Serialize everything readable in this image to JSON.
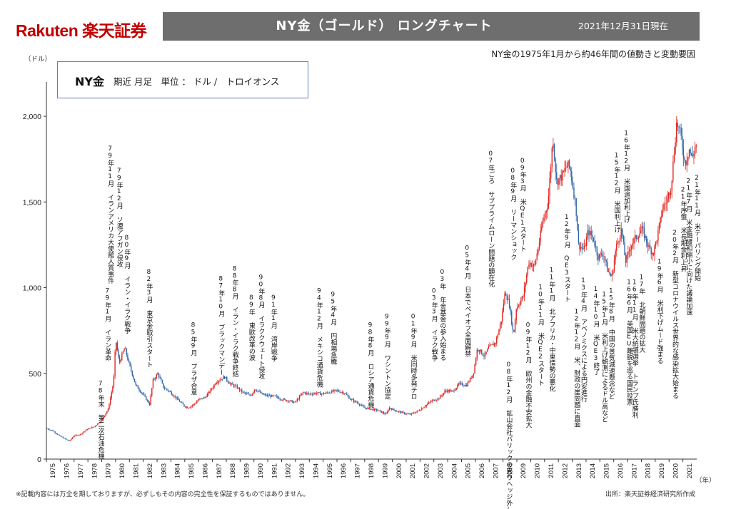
{
  "header": {
    "logo": "Rakuten 楽天証券",
    "title": "NY金（ゴールド） ロングチャート",
    "date": "2021年12月31日現在",
    "subtitle": "NY金の1975年1月から約46年間の値動きと変動要因"
  },
  "legend_box": {
    "main": "NY金",
    "detail": "期近 月足　単位 ： ドル /　トロイオンス"
  },
  "footer": {
    "note": "※記載内容には万全を期しておりますが、必ずしもその内容の完全性を保証するものではありません。",
    "source": "出所：楽天証券経済研究所作成"
  },
  "colors": {
    "up": "#e0201b",
    "down": "#2e63a6",
    "banner": "#6e6e6e",
    "logo": "#bf0000"
  },
  "chart_data": {
    "type": "candlestick",
    "title": "NY金（ゴールド） ロングチャート",
    "ylabel": "（ドル）",
    "xlabel": "（年）",
    "ylim": [
      0,
      2200
    ],
    "yticks": [
      0,
      500,
      1000,
      1500,
      2000
    ],
    "ytick_labels": [
      "0",
      "500",
      "1,000",
      "1,500",
      "2,000"
    ],
    "xlim": [
      1975,
      2022
    ],
    "xticks": [
      1975,
      1976,
      1977,
      1978,
      1979,
      1980,
      1981,
      1982,
      1983,
      1984,
      1985,
      1986,
      1987,
      1988,
      1989,
      1990,
      1991,
      1992,
      1993,
      1994,
      1995,
      1996,
      1997,
      1998,
      1999,
      2000,
      2001,
      2002,
      2003,
      2004,
      2005,
      2006,
      2007,
      2008,
      2009,
      2010,
      2011,
      2012,
      2013,
      2014,
      2015,
      2016,
      2017,
      2018,
      2019,
      2020,
      2021
    ],
    "grid": false,
    "price_path": [
      [
        1975.0,
        180
      ],
      [
        1975.5,
        165
      ],
      [
        1976.0,
        135
      ],
      [
        1976.7,
        105
      ],
      [
        1977.0,
        135
      ],
      [
        1977.5,
        145
      ],
      [
        1978.0,
        175
      ],
      [
        1978.5,
        190
      ],
      [
        1979.0,
        225
      ],
      [
        1979.5,
        290
      ],
      [
        1979.9,
        450
      ],
      [
        1980.05,
        700
      ],
      [
        1980.3,
        560
      ],
      [
        1980.7,
        650
      ],
      [
        1981.0,
        560
      ],
      [
        1981.5,
        430
      ],
      [
        1982.0,
        380
      ],
      [
        1982.5,
        320
      ],
      [
        1982.75,
        460
      ],
      [
        1983.1,
        500
      ],
      [
        1983.5,
        420
      ],
      [
        1984.0,
        390
      ],
      [
        1984.5,
        350
      ],
      [
        1985.0,
        310
      ],
      [
        1985.3,
        300
      ],
      [
        1985.8,
        325
      ],
      [
        1986.0,
        345
      ],
      [
        1986.5,
        360
      ],
      [
        1986.9,
        400
      ],
      [
        1987.3,
        450
      ],
      [
        1987.9,
        480
      ],
      [
        1988.3,
        440
      ],
      [
        1988.8,
        420
      ],
      [
        1989.2,
        390
      ],
      [
        1989.8,
        370
      ],
      [
        1990.1,
        410
      ],
      [
        1990.6,
        380
      ],
      [
        1991.0,
        370
      ],
      [
        1991.6,
        365
      ],
      [
        1992.0,
        350
      ],
      [
        1992.6,
        340
      ],
      [
        1993.0,
        330
      ],
      [
        1993.6,
        390
      ],
      [
        1994.0,
        380
      ],
      [
        1994.6,
        385
      ],
      [
        1995.0,
        380
      ],
      [
        1995.5,
        390
      ],
      [
        1996.0,
        400
      ],
      [
        1996.6,
        385
      ],
      [
        1997.0,
        350
      ],
      [
        1997.6,
        325
      ],
      [
        1998.0,
        300
      ],
      [
        1998.6,
        290
      ],
      [
        1999.0,
        285
      ],
      [
        1999.6,
        260
      ],
      [
        1999.8,
        300
      ],
      [
        2000.2,
        285
      ],
      [
        2000.8,
        270
      ],
      [
        2001.3,
        260
      ],
      [
        2001.9,
        280
      ],
      [
        2002.4,
        310
      ],
      [
        2002.9,
        340
      ],
      [
        2003.4,
        355
      ],
      [
        2003.9,
        400
      ],
      [
        2004.4,
        395
      ],
      [
        2004.9,
        440
      ],
      [
        2005.4,
        430
      ],
      [
        2005.9,
        500
      ],
      [
        2006.2,
        650
      ],
      [
        2006.7,
        600
      ],
      [
        2007.0,
        650
      ],
      [
        2007.5,
        680
      ],
      [
        2007.9,
        800
      ],
      [
        2008.2,
        980
      ],
      [
        2008.5,
        900
      ],
      [
        2008.8,
        720
      ],
      [
        2009.0,
        880
      ],
      [
        2009.5,
        950
      ],
      [
        2009.9,
        1150
      ],
      [
        2010.3,
        1120
      ],
      [
        2010.6,
        1240
      ],
      [
        2010.9,
        1380
      ],
      [
        2011.3,
        1500
      ],
      [
        2011.65,
        1880
      ],
      [
        2011.9,
        1620
      ],
      [
        2012.3,
        1650
      ],
      [
        2012.7,
        1720
      ],
      [
        2012.9,
        1690
      ],
      [
        2013.3,
        1480
      ],
      [
        2013.5,
        1250
      ],
      [
        2013.9,
        1220
      ],
      [
        2014.2,
        1330
      ],
      [
        2014.6,
        1280
      ],
      [
        2014.9,
        1180
      ],
      [
        2015.3,
        1200
      ],
      [
        2015.6,
        1100
      ],
      [
        2015.9,
        1060
      ],
      [
        2016.2,
        1230
      ],
      [
        2016.6,
        1340
      ],
      [
        2016.9,
        1150
      ],
      [
        2017.3,
        1250
      ],
      [
        2017.7,
        1300
      ],
      [
        2018.1,
        1340
      ],
      [
        2018.6,
        1230
      ],
      [
        2018.9,
        1200
      ],
      [
        2019.2,
        1300
      ],
      [
        2019.6,
        1470
      ],
      [
        2019.9,
        1510
      ],
      [
        2020.2,
        1600
      ],
      [
        2020.6,
        1970
      ],
      [
        2020.9,
        1880
      ],
      [
        2021.2,
        1720
      ],
      [
        2021.5,
        1810
      ],
      [
        2021.7,
        1750
      ],
      [
        2021.95,
        1830
      ]
    ],
    "annotations": [
      {
        "x": 1978.9,
        "y": 460,
        "text": "78年末 第二次石油危機"
      },
      {
        "x": 1979.4,
        "y": 1000,
        "text": "79年1月 イラン革命"
      },
      {
        "x": 1979.6,
        "y": 1830,
        "text": "79年11月 イランアメリカ大使館人質事件"
      },
      {
        "x": 1980.25,
        "y": 1700,
        "text": "79年12月 ソ連アフガン侵攻"
      },
      {
        "x": 1980.8,
        "y": 1310,
        "text": "80年9月 イラン・イラク戦争"
      },
      {
        "x": 1982.4,
        "y": 1110,
        "text": "82年3月 東京金取引スタート"
      },
      {
        "x": 1985.6,
        "y": 800,
        "text": "85年9月 プラザ合意"
      },
      {
        "x": 1987.6,
        "y": 1070,
        "text": "87年10月 ブラックマンデー"
      },
      {
        "x": 1988.6,
        "y": 1130,
        "text": "88年8月 イラン・イラク戦争終結"
      },
      {
        "x": 1989.8,
        "y": 960,
        "text": "89年 東欧改革の波"
      },
      {
        "x": 1990.5,
        "y": 1080,
        "text": "90年8月 イラククウェート侵攻"
      },
      {
        "x": 1991.4,
        "y": 960,
        "text": "91年1月 湾岸戦争"
      },
      {
        "x": 1994.7,
        "y": 1000,
        "text": "94年12月 メキシコ通貨危機"
      },
      {
        "x": 1995.7,
        "y": 980,
        "text": "95年4月 円相場急騰"
      },
      {
        "x": 1998.4,
        "y": 800,
        "text": "98年8月 ロシア通貨危機"
      },
      {
        "x": 1999.6,
        "y": 850,
        "text": "99年9月 ワシントン協定"
      },
      {
        "x": 2001.5,
        "y": 850,
        "text": "01年9月 米同時多発テロ"
      },
      {
        "x": 2003.0,
        "y": 1000,
        "text": "03年3月 イラク戦争"
      },
      {
        "x": 2003.6,
        "y": 1110,
        "text": "03年 年金基金の参入始まる"
      },
      {
        "x": 2005.4,
        "y": 1250,
        "text": "05年4月 日本でペイオフ全面解禁"
      },
      {
        "x": 2007.1,
        "y": 1800,
        "text": "07年ごろ サブプライムローン問題の顕在化"
      },
      {
        "x": 2008.4,
        "y": 570,
        "text": "08年12月 鉱山会社バリックの売りヘッジ外し"
      },
      {
        "x": 2008.7,
        "y": 1700,
        "text": "08年9月 リーマンショック"
      },
      {
        "x": 2009.4,
        "y": 1760,
        "text": "09年3月 米QE1スタート"
      },
      {
        "x": 2009.8,
        "y": 800,
        "text": "09年12月 欧州の金融不安拡大"
      },
      {
        "x": 2010.7,
        "y": 1020,
        "text": "10年11月 米QE2スタート"
      },
      {
        "x": 2011.5,
        "y": 1120,
        "text": "11年1月 北アフリカ・中東情勢の悪化"
      },
      {
        "x": 2012.6,
        "y": 1430,
        "text": "12年9月 QE3スタート"
      },
      {
        "x": 2013.3,
        "y": 880,
        "text": "12年12月 米、財政の崖問題に直面"
      },
      {
        "x": 2013.8,
        "y": 1060,
        "text": "13年4月 アベノミクスによる円安進行"
      },
      {
        "x": 2014.7,
        "y": 1010,
        "text": "14年10月 米QE3終了"
      },
      {
        "x": 2015.3,
        "y": 980,
        "text": "15年1月 米利上げ観測によるドル高など"
      },
      {
        "x": 2015.8,
        "y": 1000,
        "text": "15年8月 中国の景気減速懸念など"
      },
      {
        "x": 2016.2,
        "y": 1790,
        "text": "15年12月 米国利上げ"
      },
      {
        "x": 2016.9,
        "y": 1920,
        "text": "16年12月 米国追加利上げ"
      },
      {
        "x": 2017.1,
        "y": 1050,
        "text": "16年6月 英国EU離脱を巡る国民投票"
      },
      {
        "x": 2017.5,
        "y": 1050,
        "text": "16年11月 米大統領選挙 トランプ氏勝利"
      },
      {
        "x": 2018.0,
        "y": 1080,
        "text": "17年 北朝鮮問題の拡大"
      },
      {
        "x": 2019.3,
        "y": 1170,
        "text": "19年6月 米利下げムード強まる"
      },
      {
        "x": 2020.4,
        "y": 1340,
        "text": "20年2月 新型コロナウイルス世界的な感染拡大始まる"
      },
      {
        "x": 2021.0,
        "y": 1590,
        "text": "21年序盤 米長期金利上昇"
      },
      {
        "x": 2021.4,
        "y": 1640,
        "text": "21年7月 米金融緩和縮小に向けた議論加速"
      },
      {
        "x": 2022.0,
        "y": 1660,
        "text": "21年11月 米テーパリング開始"
      }
    ]
  }
}
